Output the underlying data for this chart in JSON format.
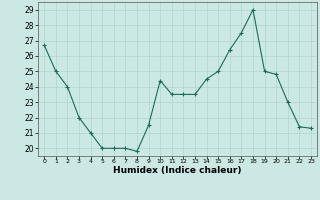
{
  "x": [
    0,
    1,
    2,
    3,
    4,
    5,
    6,
    7,
    8,
    9,
    10,
    11,
    12,
    13,
    14,
    15,
    16,
    17,
    18,
    19,
    20,
    21,
    22,
    23
  ],
  "y": [
    26.7,
    25.0,
    24.0,
    22.0,
    21.0,
    20.0,
    20.0,
    20.0,
    19.8,
    21.5,
    24.4,
    23.5,
    23.5,
    23.5,
    24.5,
    25.0,
    26.4,
    27.5,
    29.0,
    25.0,
    24.8,
    23.0,
    21.4,
    21.3
  ],
  "ylim": [
    19.5,
    29.5
  ],
  "yticks": [
    20,
    21,
    22,
    23,
    24,
    25,
    26,
    27,
    28,
    29
  ],
  "xticks": [
    0,
    1,
    2,
    3,
    4,
    5,
    6,
    7,
    8,
    9,
    10,
    11,
    12,
    13,
    14,
    15,
    16,
    17,
    18,
    19,
    20,
    21,
    22,
    23
  ],
  "xlabel": "Humidex (Indice chaleur)",
  "line_color": "#1a6b5a",
  "marker": "+",
  "marker_color": "#1a6b5a",
  "bg_color": "#cce8e4",
  "grid_color": "#b0d4cf"
}
